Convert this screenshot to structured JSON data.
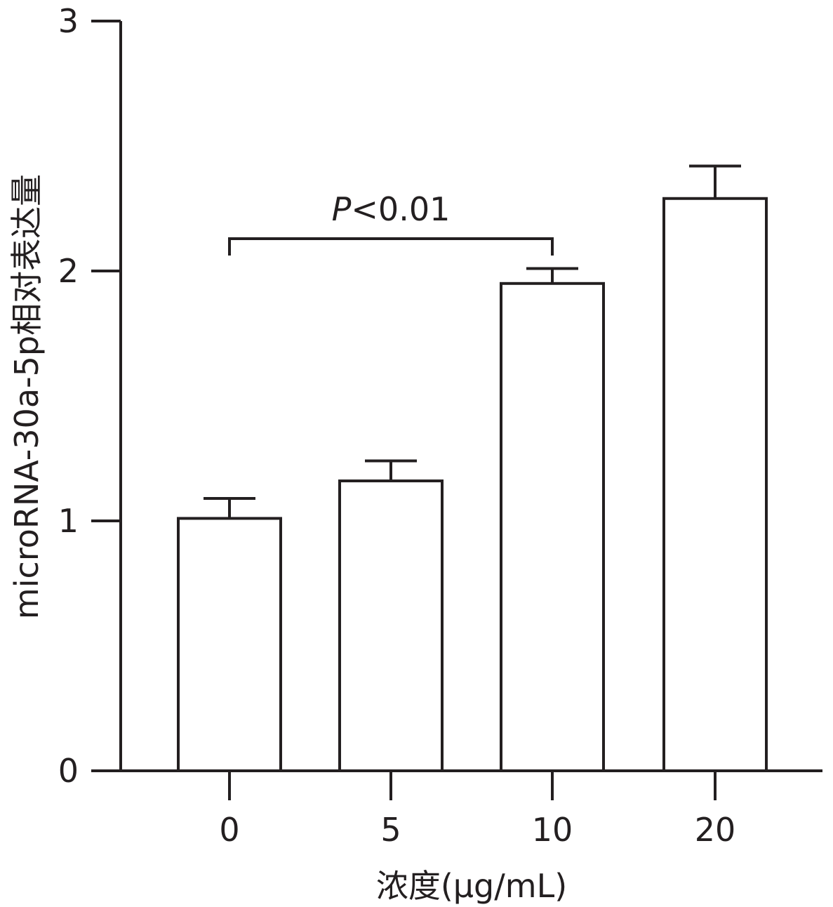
{
  "chart_data": {
    "type": "bar",
    "categories": [
      "0",
      "5",
      "10",
      "20"
    ],
    "values": [
      1.01,
      1.16,
      1.95,
      2.29
    ],
    "errors": [
      0.08,
      0.08,
      0.06,
      0.13
    ],
    "xlabel": "浓度(μg/mL)",
    "ylabel": "microRNA-30a-5p相对表达量",
    "ylim": [
      0,
      3
    ],
    "yticks": [
      "0",
      "1",
      "2",
      "3"
    ],
    "grid": false,
    "legend": "none",
    "colors": {
      "bar_fill": "#ffffff",
      "stroke": "#231f20"
    },
    "annotation": {
      "from_category": "0",
      "to_category": "10",
      "p_symbol": "P",
      "p_rest": "<0.01"
    }
  }
}
